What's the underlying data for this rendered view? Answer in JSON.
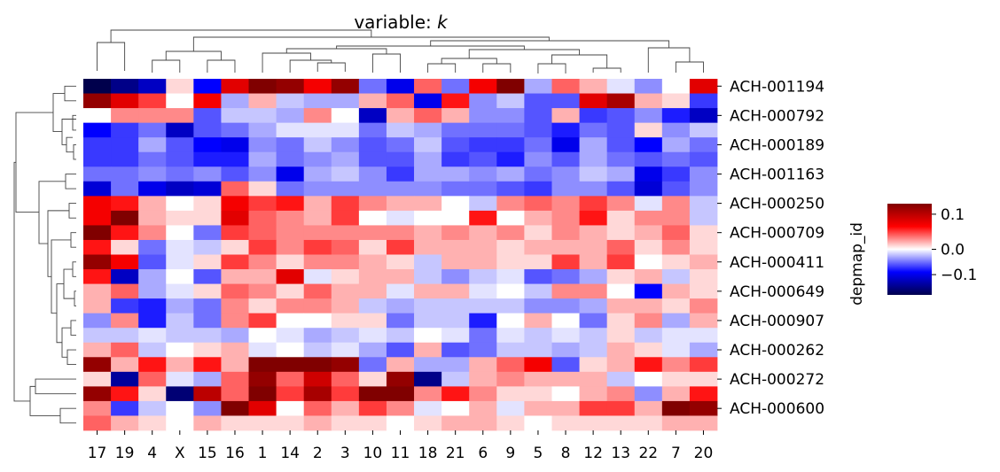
{
  "chart_data": {
    "type": "heatmap",
    "title_prefix": "variable: ",
    "title_var": "k",
    "ylabel": "depmap_id",
    "columns": [
      "17",
      "19",
      "4",
      "X",
      "15",
      "16",
      "1",
      "14",
      "2",
      "3",
      "10",
      "11",
      "18",
      "21",
      "6",
      "9",
      "5",
      "8",
      "12",
      "13",
      "22",
      "7",
      "20"
    ],
    "row_labels": [
      "ACH-001194",
      "ACH-000792",
      "ACH-000189",
      "ACH-001163",
      "ACH-000250",
      "ACH-000709",
      "ACH-000411",
      "ACH-000649",
      "ACH-000907",
      "ACH-000262",
      "ACH-000272",
      "ACH-000600"
    ],
    "rows": 24,
    "vmin": -0.18,
    "vmax": 0.13,
    "colorbar_ticks": [
      0.1,
      0.0,
      -0.1
    ],
    "colorbar_tick_labels": [
      "0.1",
      "0.0",
      "−0.1"
    ],
    "colormap": "seismic",
    "values": [
      [
        -0.18,
        -0.15,
        -0.12,
        0.01,
        -0.09,
        0.08,
        0.13,
        0.12,
        0.07,
        0.12,
        -0.05,
        -0.1,
        0.04,
        -0.05,
        0.07,
        0.14,
        -0.03,
        0.04,
        0.02,
        -0.01,
        -0.04,
        0.0,
        0.08
      ],
      [
        0.12,
        0.08,
        0.05,
        0.0,
        0.07,
        -0.03,
        0.02,
        -0.02,
        -0.03,
        -0.03,
        0.02,
        0.04,
        -0.1,
        0.06,
        -0.04,
        -0.02,
        -0.06,
        -0.06,
        0.08,
        0.11,
        0.02,
        0.01,
        -0.07
      ],
      [
        0.0,
        0.03,
        0.03,
        0.03,
        -0.06,
        -0.02,
        -0.02,
        -0.03,
        0.03,
        0.0,
        -0.12,
        0.02,
        0.04,
        0.02,
        -0.04,
        -0.04,
        -0.06,
        0.02,
        -0.07,
        -0.06,
        -0.04,
        -0.08,
        -0.12
      ],
      [
        -0.09,
        -0.07,
        -0.05,
        -0.12,
        -0.06,
        -0.05,
        -0.03,
        -0.01,
        -0.01,
        -0.01,
        -0.05,
        -0.02,
        -0.03,
        -0.05,
        -0.05,
        -0.05,
        -0.06,
        -0.08,
        -0.05,
        -0.06,
        0.01,
        -0.04,
        -0.02
      ],
      [
        -0.07,
        -0.07,
        -0.03,
        -0.06,
        -0.09,
        -0.1,
        -0.04,
        -0.05,
        -0.02,
        -0.04,
        -0.06,
        -0.05,
        -0.02,
        -0.06,
        -0.07,
        -0.07,
        -0.05,
        -0.1,
        -0.03,
        -0.06,
        -0.09,
        -0.03,
        -0.05
      ],
      [
        -0.07,
        -0.07,
        -0.05,
        -0.06,
        -0.08,
        -0.08,
        -0.03,
        -0.05,
        -0.04,
        -0.03,
        -0.06,
        -0.06,
        -0.03,
        -0.07,
        -0.06,
        -0.08,
        -0.04,
        -0.06,
        -0.03,
        -0.05,
        -0.06,
        -0.05,
        -0.06
      ],
      [
        -0.05,
        -0.05,
        -0.04,
        -0.05,
        -0.04,
        -0.06,
        -0.04,
        -0.1,
        -0.03,
        -0.02,
        -0.04,
        -0.07,
        -0.03,
        -0.03,
        -0.04,
        -0.03,
        -0.05,
        -0.04,
        -0.02,
        -0.03,
        -0.1,
        -0.07,
        -0.04
      ],
      [
        -0.11,
        -0.05,
        -0.1,
        -0.12,
        -0.11,
        0.04,
        0.01,
        -0.05,
        -0.04,
        -0.04,
        -0.04,
        -0.04,
        -0.04,
        -0.05,
        -0.05,
        -0.06,
        -0.07,
        -0.04,
        -0.04,
        -0.06,
        -0.11,
        -0.06,
        -0.04
      ],
      [
        0.07,
        0.06,
        0.02,
        0.0,
        0.01,
        0.07,
        0.05,
        0.06,
        0.02,
        0.05,
        0.03,
        0.02,
        0.02,
        0.0,
        -0.02,
        0.03,
        0.04,
        0.03,
        0.05,
        0.03,
        -0.01,
        0.03,
        -0.02
      ],
      [
        0.07,
        0.14,
        0.02,
        0.01,
        0.01,
        0.08,
        0.04,
        0.03,
        0.02,
        0.05,
        0.0,
        -0.01,
        0.0,
        0.0,
        0.06,
        0.0,
        0.02,
        0.03,
        0.06,
        0.01,
        0.03,
        0.03,
        -0.02
      ],
      [
        0.13,
        0.06,
        0.03,
        0.0,
        -0.05,
        0.05,
        0.04,
        0.03,
        0.03,
        0.03,
        0.03,
        0.03,
        0.02,
        0.03,
        0.02,
        0.03,
        0.01,
        0.03,
        0.02,
        0.01,
        0.02,
        0.04,
        0.01
      ],
      [
        0.06,
        0.01,
        -0.05,
        -0.01,
        -0.02,
        0.01,
        0.05,
        0.03,
        0.05,
        0.04,
        0.01,
        0.05,
        0.02,
        0.02,
        0.02,
        0.01,
        0.02,
        0.02,
        0.02,
        0.04,
        0.01,
        0.03,
        0.01
      ],
      [
        0.12,
        0.07,
        -0.06,
        -0.01,
        0.01,
        0.05,
        0.03,
        0.01,
        0.03,
        0.03,
        0.02,
        0.01,
        -0.02,
        0.02,
        0.02,
        0.01,
        0.01,
        0.05,
        0.02,
        0.05,
        0.0,
        0.01,
        0.02
      ],
      [
        0.06,
        -0.12,
        -0.03,
        0.0,
        -0.06,
        0.02,
        0.02,
        0.08,
        -0.01,
        0.01,
        0.02,
        0.02,
        -0.02,
        -0.04,
        -0.02,
        -0.01,
        -0.06,
        -0.05,
        -0.03,
        0.01,
        0.02,
        -0.02,
        0.01
      ],
      [
        0.02,
        0.04,
        -0.03,
        -0.01,
        0.01,
        0.04,
        0.03,
        0.01,
        0.04,
        0.02,
        0.02,
        -0.01,
        0.02,
        0.02,
        -0.01,
        0.0,
        -0.02,
        0.03,
        0.03,
        0.0,
        -0.09,
        0.02,
        0.01
      ],
      [
        0.02,
        -0.07,
        -0.08,
        -0.03,
        -0.05,
        0.03,
        0.01,
        0.03,
        0.03,
        0.02,
        -0.02,
        -0.03,
        -0.02,
        -0.02,
        -0.02,
        -0.02,
        -0.04,
        -0.04,
        -0.03,
        0.02,
        0.02,
        0.01,
        0.03
      ],
      [
        -0.04,
        0.03,
        -0.08,
        -0.02,
        -0.05,
        0.03,
        0.05,
        0.0,
        0.0,
        0.01,
        0.01,
        -0.05,
        -0.02,
        -0.02,
        -0.08,
        0.0,
        0.02,
        0.0,
        -0.05,
        0.01,
        0.03,
        -0.03,
        0.02
      ],
      [
        -0.02,
        -0.02,
        -0.01,
        -0.02,
        -0.02,
        -0.03,
        0.0,
        -0.01,
        -0.03,
        -0.02,
        -0.01,
        -0.02,
        0.0,
        -0.01,
        -0.05,
        -0.01,
        -0.02,
        -0.01,
        -0.02,
        0.01,
        -0.02,
        -0.01,
        -0.01
      ],
      [
        0.02,
        0.04,
        -0.02,
        0.0,
        0.01,
        0.02,
        -0.01,
        0.0,
        -0.02,
        -0.01,
        -0.03,
        -0.06,
        0.02,
        -0.06,
        -0.05,
        -0.02,
        -0.02,
        -0.03,
        -0.02,
        0.02,
        0.01,
        -0.01,
        -0.03
      ],
      [
        0.12,
        0.02,
        0.06,
        0.02,
        0.06,
        0.02,
        0.15,
        0.13,
        0.15,
        0.12,
        -0.05,
        0.02,
        -0.03,
        -0.03,
        0.02,
        0.04,
        0.07,
        -0.06,
        0.01,
        0.02,
        0.06,
        0.03,
        0.05
      ],
      [
        0.01,
        -0.14,
        0.04,
        -0.01,
        -0.03,
        0.04,
        0.12,
        0.04,
        0.09,
        0.04,
        0.01,
        0.12,
        -0.15,
        -0.02,
        0.02,
        0.03,
        0.02,
        0.02,
        0.02,
        -0.02,
        0.0,
        0.01,
        0.01
      ],
      [
        0.12,
        0.06,
        0.01,
        -0.16,
        0.1,
        0.04,
        0.15,
        0.05,
        0.11,
        0.05,
        0.13,
        0.15,
        0.03,
        0.06,
        0.03,
        0.01,
        0.01,
        0.0,
        0.02,
        0.03,
        -0.04,
        0.02,
        0.06
      ],
      [
        0.03,
        -0.07,
        -0.02,
        0.0,
        -0.04,
        0.13,
        0.08,
        0.0,
        0.04,
        0.02,
        0.05,
        0.03,
        -0.01,
        0.0,
        0.02,
        -0.01,
        0.02,
        0.02,
        0.05,
        0.05,
        0.02,
        0.17,
        0.12
      ],
      [
        0.04,
        0.02,
        0.01,
        0.0,
        0.02,
        0.01,
        0.01,
        0.01,
        0.02,
        0.01,
        0.01,
        0.0,
        0.01,
        0.02,
        0.02,
        0.01,
        0.0,
        0.01,
        0.01,
        0.01,
        0.01,
        0.02,
        0.02
      ]
    ]
  }
}
